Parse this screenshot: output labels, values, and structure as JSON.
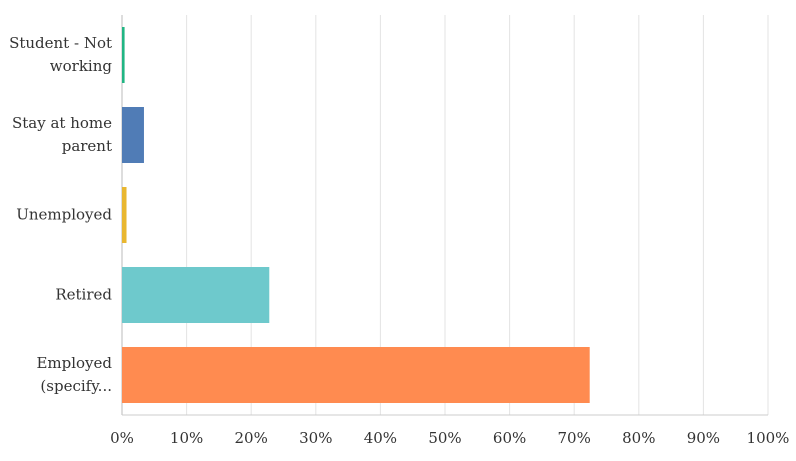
{
  "chart_data": {
    "type": "bar",
    "orientation": "horizontal",
    "categories": [
      "Student - Not working",
      "Stay at home parent",
      "Unemployed",
      "Retired",
      "Employed (specify..."
    ],
    "values": [
      0.4,
      3.4,
      0.7,
      22.8,
      72.4
    ],
    "colors": [
      "#21b583",
      "#507cb6",
      "#e9b730",
      "#6ec9cc",
      "#ff8b50"
    ],
    "xlim": [
      0,
      100
    ],
    "xticks": [
      {
        "value": 0,
        "label": "0%"
      },
      {
        "value": 10,
        "label": "10%"
      },
      {
        "value": 20,
        "label": "20%"
      },
      {
        "value": 30,
        "label": "30%"
      },
      {
        "value": 40,
        "label": "40%"
      },
      {
        "value": 50,
        "label": "50%"
      },
      {
        "value": 60,
        "label": "60%"
      },
      {
        "value": 70,
        "label": "70%"
      },
      {
        "value": 80,
        "label": "80%"
      },
      {
        "value": 90,
        "label": "90%"
      },
      {
        "value": 100,
        "label": "100%"
      }
    ],
    "grid": true
  }
}
